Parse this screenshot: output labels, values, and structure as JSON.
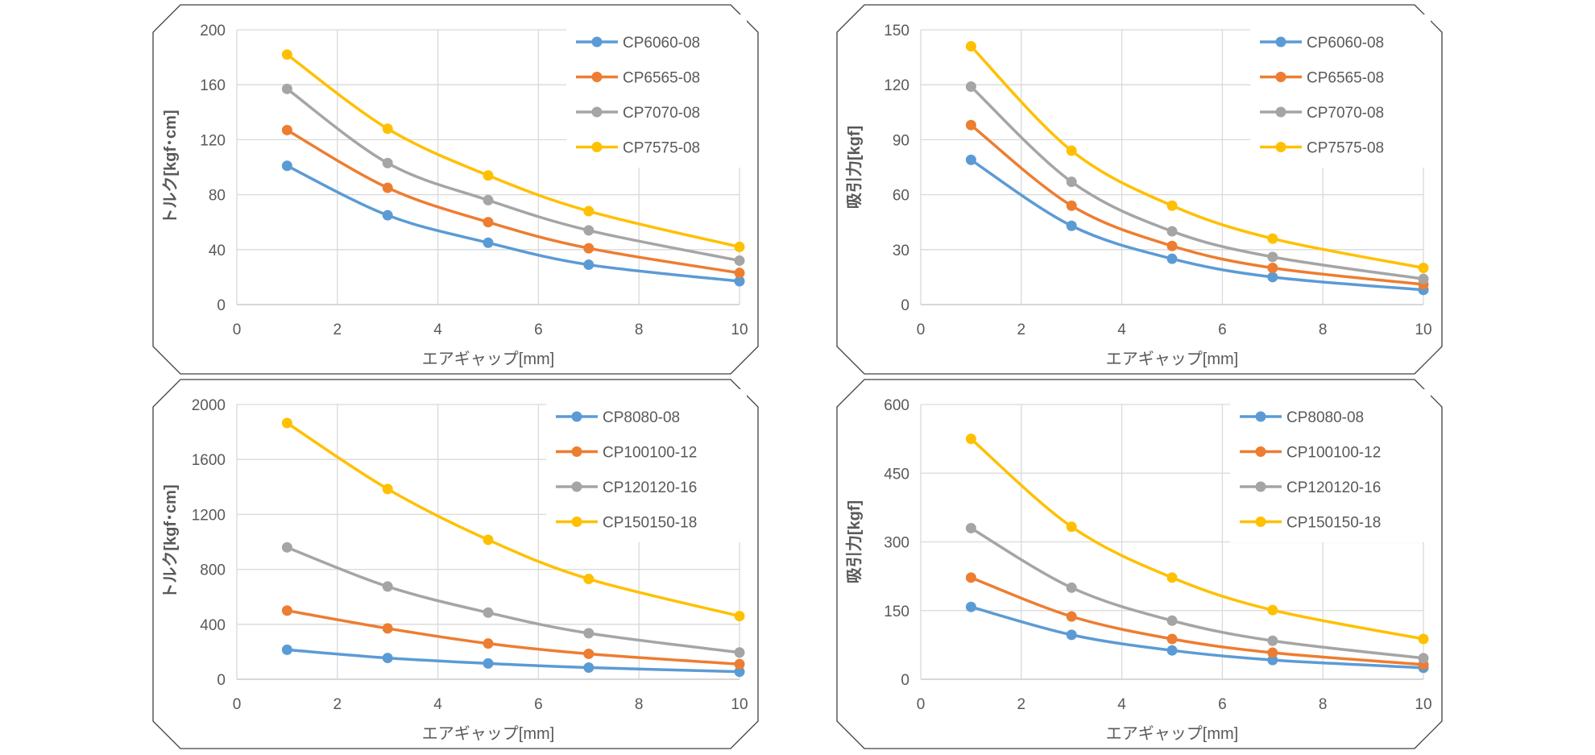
{
  "chart_data": [
    {
      "type": "line",
      "xlabel": "エアギャップ[mm]",
      "ylabel": "トルク[kgf･cm]",
      "xlim": [
        0,
        10
      ],
      "ylim": [
        0,
        200
      ],
      "xticks": [
        "0",
        "2",
        "4",
        "6",
        "8",
        "10"
      ],
      "yticks": [
        "0",
        "40",
        "80",
        "120",
        "160",
        "200"
      ],
      "grid": true,
      "legend": "top-right",
      "x": [
        1,
        3,
        5,
        7,
        10
      ],
      "series": [
        {
          "name": "CP6060-08",
          "color": "#5B9BD5",
          "values": [
            101,
            65,
            45,
            29,
            17
          ]
        },
        {
          "name": "CP6565-08",
          "color": "#ED7D31",
          "values": [
            127,
            85,
            60,
            41,
            23
          ]
        },
        {
          "name": "CP7070-08",
          "color": "#A5A5A5",
          "values": [
            157,
            103,
            76,
            54,
            32
          ]
        },
        {
          "name": "CP7575-08",
          "color": "#FFC000",
          "values": [
            182,
            128,
            94,
            68,
            42
          ]
        }
      ]
    },
    {
      "type": "line",
      "xlabel": "エアギャップ[mm]",
      "ylabel": "吸引力[kgf]",
      "xlim": [
        0,
        10
      ],
      "ylim": [
        0,
        150
      ],
      "xticks": [
        "0",
        "2",
        "4",
        "6",
        "8",
        "10"
      ],
      "yticks": [
        "0",
        "30",
        "60",
        "90",
        "120",
        "150"
      ],
      "grid": true,
      "legend": "top-right",
      "x": [
        1,
        3,
        5,
        7,
        10
      ],
      "series": [
        {
          "name": "CP6060-08",
          "color": "#5B9BD5",
          "values": [
            79,
            43,
            25,
            15,
            8
          ]
        },
        {
          "name": "CP6565-08",
          "color": "#ED7D31",
          "values": [
            98,
            54,
            32,
            20,
            11
          ]
        },
        {
          "name": "CP7070-08",
          "color": "#A5A5A5",
          "values": [
            119,
            67,
            40,
            26,
            14
          ]
        },
        {
          "name": "CP7575-08",
          "color": "#FFC000",
          "values": [
            141,
            84,
            54,
            36,
            20
          ]
        }
      ]
    },
    {
      "type": "line",
      "xlabel": "エアギャップ[mm]",
      "ylabel": "トルク[kgf･cm]",
      "xlim": [
        0,
        10
      ],
      "ylim": [
        0,
        2000
      ],
      "xticks": [
        "0",
        "2",
        "4",
        "6",
        "8",
        "10"
      ],
      "yticks": [
        "0",
        "400",
        "800",
        "1200",
        "1600",
        "2000"
      ],
      "grid": true,
      "legend": "top-right",
      "x": [
        1,
        3,
        5,
        7,
        10
      ],
      "series": [
        {
          "name": "CP8080-08",
          "color": "#5B9BD5",
          "values": [
            215,
            155,
            115,
            85,
            55
          ]
        },
        {
          "name": "CP100100-12",
          "color": "#ED7D31",
          "values": [
            500,
            370,
            260,
            185,
            110
          ]
        },
        {
          "name": "CP120120-16",
          "color": "#A5A5A5",
          "values": [
            960,
            675,
            485,
            335,
            195
          ]
        },
        {
          "name": "CP150150-18",
          "color": "#FFC000",
          "values": [
            1865,
            1385,
            1015,
            730,
            460
          ]
        }
      ]
    },
    {
      "type": "line",
      "xlabel": "エアギャップ[mm]",
      "ylabel": "吸引力[kgf]",
      "xlim": [
        0,
        10
      ],
      "ylim": [
        0,
        600
      ],
      "xticks": [
        "0",
        "2",
        "4",
        "6",
        "8",
        "10"
      ],
      "yticks": [
        "0",
        "150",
        "300",
        "450",
        "600"
      ],
      "grid": true,
      "legend": "top-right",
      "x": [
        1,
        3,
        5,
        7,
        10
      ],
      "series": [
        {
          "name": "CP8080-08",
          "color": "#5B9BD5",
          "values": [
            158,
            97,
            63,
            42,
            25
          ]
        },
        {
          "name": "CP100100-12",
          "color": "#ED7D31",
          "values": [
            222,
            137,
            88,
            58,
            32
          ]
        },
        {
          "name": "CP120120-16",
          "color": "#A5A5A5",
          "values": [
            330,
            200,
            128,
            84,
            46
          ]
        },
        {
          "name": "CP150150-18",
          "color": "#FFC000",
          "values": [
            525,
            333,
            222,
            151,
            88
          ]
        }
      ]
    }
  ]
}
